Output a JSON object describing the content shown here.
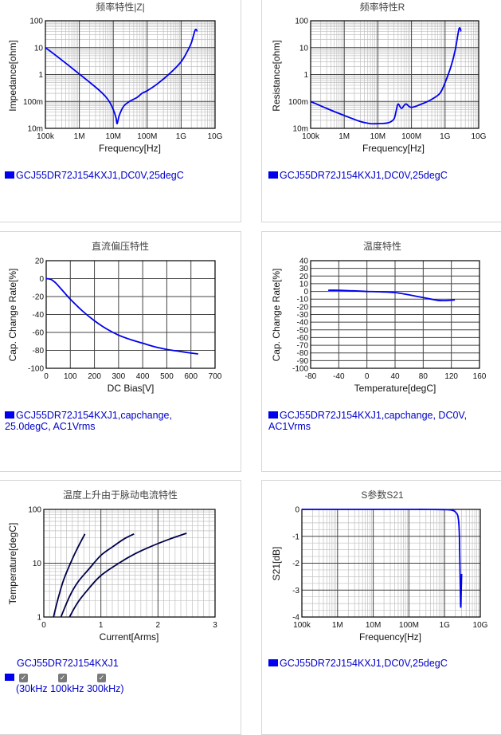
{
  "charts": [
    {
      "title": "频率特性|Z|",
      "xlabel": "Frequency[Hz]",
      "ylabel": "Impedance[ohm]",
      "xticks": [
        "100k",
        "1M",
        "10M",
        "100M",
        "1G",
        "10G"
      ],
      "yticks": [
        "100",
        "10",
        "1",
        "100m",
        "10m"
      ],
      "legend": "GCJ55DR72J154KXJ1,DC0V,25degC"
    },
    {
      "title": "频率特性R",
      "xlabel": "Frequency[Hz]",
      "ylabel": "Resistance[ohm]",
      "xticks": [
        "100k",
        "1M",
        "10M",
        "100M",
        "1G",
        "10G"
      ],
      "yticks": [
        "100",
        "10",
        "1",
        "100m",
        "10m"
      ],
      "legend": "GCJ55DR72J154KXJ1,DC0V,25degC"
    },
    {
      "title": "直流偏压特性",
      "xlabel": "DC Bias[V]",
      "ylabel": "Cap. Change Rate[%]",
      "xticks": [
        "0",
        "100",
        "200",
        "300",
        "400",
        "500",
        "600",
        "700"
      ],
      "yticks": [
        "20",
        "0",
        "-20",
        "-40",
        "-60",
        "-80",
        "-100"
      ],
      "legend_lines": [
        "GCJ55DR72J154KXJ1,capchange,",
        "25.0degC, AC1Vrms"
      ]
    },
    {
      "title": "温度特性",
      "xlabel": "Temperature[degC]",
      "ylabel": "Cap. Change Rate[%]",
      "xticks": [
        "-80",
        "-40",
        "0",
        "40",
        "80",
        "120",
        "160"
      ],
      "yticks": [
        "40",
        "30",
        "20",
        "10",
        "0",
        "-10",
        "-20",
        "-30",
        "-40",
        "-50",
        "-60",
        "-70",
        "-80",
        "-90",
        "-100"
      ],
      "legend_lines": [
        "GCJ55DR72J154KXJ1,capchange, DC0V,",
        "AC1Vrms"
      ]
    },
    {
      "title": "温度上升由于脉动电流特性",
      "xlabel": "Current[Arms]",
      "ylabel": "Temperature[degC]",
      "xticks": [
        "0",
        "1",
        "2",
        "3"
      ],
      "yticks": [
        "100",
        "10",
        "1"
      ],
      "legend": "GCJ55DR72J154KXJ1",
      "checkbox_labels": [
        "30kHz",
        "100kHz",
        "300kHz"
      ],
      "checkbox_prefix": "(",
      "checkbox_suffix": ")"
    },
    {
      "title": "S参数S21",
      "xlabel": "Frequency[Hz]",
      "ylabel": "S21[dB]",
      "xticks": [
        "100k",
        "1M",
        "10M",
        "100M",
        "1G",
        "10G"
      ],
      "yticks": [
        "0",
        "-1",
        "-2",
        "-3",
        "-4"
      ],
      "legend": "GCJ55DR72J154KXJ1,DC0V,25degC"
    }
  ],
  "colors": {
    "series": "#0000ee",
    "ripple_series": "#00004a",
    "grid": "#c0c0c0",
    "grid_major": "#444444",
    "legend_text": "#0000cc"
  },
  "chart_data": [
    {
      "type": "line",
      "title": "频率特性|Z|",
      "xlabel": "Frequency[Hz]",
      "ylabel": "Impedance[ohm]",
      "xscale": "log",
      "yscale": "log",
      "xlim": [
        100000,
        10000000000
      ],
      "ylim": [
        0.01,
        100
      ],
      "series": [
        {
          "name": "GCJ55DR72J154KXJ1,DC0V,25degC",
          "x": [
            100000,
            200000,
            500000,
            1000000,
            2000000,
            4000000,
            6000000,
            8000000,
            10000000,
            12000000,
            13000000,
            15000000,
            20000000,
            30000000,
            50000000,
            70000000,
            100000000,
            200000000,
            500000000,
            1000000000,
            1500000000,
            2000000000,
            2600000000,
            3000000000
          ],
          "y": [
            10,
            5.2,
            2.1,
            1.05,
            0.52,
            0.25,
            0.15,
            0.09,
            0.05,
            0.025,
            0.015,
            0.03,
            0.065,
            0.1,
            0.14,
            0.2,
            0.25,
            0.45,
            1.2,
            3,
            7,
            15,
            45,
            40
          ]
        }
      ]
    },
    {
      "type": "line",
      "title": "频率特性R",
      "xlabel": "Frequency[Hz]",
      "ylabel": "Resistance[ohm]",
      "xscale": "log",
      "yscale": "log",
      "xlim": [
        100000,
        10000000000
      ],
      "ylim": [
        0.01,
        100
      ],
      "series": [
        {
          "name": "GCJ55DR72J154KXJ1,DC0V,25degC",
          "x": [
            100000,
            300000,
            1000000,
            3000000,
            6000000,
            10000000,
            20000000,
            30000000,
            35000000,
            40000000,
            50000000,
            60000000,
            70000000,
            100000000,
            200000000,
            400000000,
            700000000,
            1000000000,
            1500000000,
            2000000000,
            2600000000,
            3000000000
          ],
          "y": [
            0.1,
            0.055,
            0.03,
            0.018,
            0.015,
            0.015,
            0.016,
            0.022,
            0.045,
            0.08,
            0.055,
            0.07,
            0.08,
            0.06,
            0.08,
            0.12,
            0.2,
            0.5,
            2,
            8,
            50,
            40
          ]
        }
      ]
    },
    {
      "type": "line",
      "title": "直流偏压特性",
      "xlabel": "DC Bias[V]",
      "ylabel": "Cap. Change Rate[%]",
      "xlim": [
        0,
        700
      ],
      "ylim": [
        -100,
        20
      ],
      "series": [
        {
          "name": "GCJ55DR72J154KXJ1,capchange, 25.0degC, AC1Vrms",
          "x": [
            0,
            20,
            40,
            60,
            80,
            100,
            150,
            200,
            250,
            300,
            350,
            400,
            450,
            500,
            550,
            600,
            630
          ],
          "y": [
            0,
            -1,
            -5,
            -11,
            -17,
            -23,
            -36,
            -47,
            -56,
            -63,
            -68,
            -72,
            -76,
            -79,
            -81,
            -83,
            -84
          ]
        }
      ]
    },
    {
      "type": "line",
      "title": "温度特性",
      "xlabel": "Temperature[degC]",
      "ylabel": "Cap. Change Rate[%]",
      "xlim": [
        -80,
        160
      ],
      "ylim": [
        -100,
        40
      ],
      "series": [
        {
          "name": "GCJ55DR72J154KXJ1,capchange, DC0V, AC1Vrms",
          "x": [
            -55,
            -40,
            -20,
            0,
            20,
            40,
            60,
            80,
            100,
            110,
            125
          ],
          "y": [
            1.5,
            1.5,
            0.8,
            0,
            -0.5,
            -1.5,
            -4.5,
            -8,
            -11.5,
            -12,
            -11
          ]
        }
      ]
    },
    {
      "type": "line",
      "title": "温度上升由于脉动电流特性",
      "xlabel": "Current[Arms]",
      "ylabel": "Temperature[degC]",
      "yscale": "log",
      "xlim": [
        0,
        3
      ],
      "ylim": [
        1,
        100
      ],
      "series": [
        {
          "name": "30kHz",
          "x": [
            0.17,
            0.25,
            0.35,
            0.5,
            0.6,
            0.72
          ],
          "y": [
            1,
            2.2,
            5,
            12,
            20,
            35
          ]
        },
        {
          "name": "100kHz",
          "x": [
            0.3,
            0.45,
            0.6,
            0.8,
            1.0,
            1.2,
            1.4,
            1.58
          ],
          "y": [
            1,
            2.4,
            4.5,
            8,
            14,
            20,
            28,
            35
          ]
        },
        {
          "name": "300kHz",
          "x": [
            0.45,
            0.6,
            0.8,
            1.0,
            1.3,
            1.6,
            1.9,
            2.2,
            2.5
          ],
          "y": [
            1,
            1.9,
            3.5,
            5.9,
            9.8,
            15,
            21,
            28,
            36
          ]
        }
      ]
    },
    {
      "type": "line",
      "title": "S参数S21",
      "xlabel": "Frequency[Hz]",
      "ylabel": "S21[dB]",
      "xscale": "log",
      "xlim": [
        100000,
        10000000000
      ],
      "ylim": [
        -4,
        0
      ],
      "series": [
        {
          "name": "GCJ55DR72J154KXJ1,DC0V,25degC",
          "x": [
            100000,
            1000000,
            10000000,
            100000000,
            300000000,
            1000000000,
            1500000000,
            1800000000,
            2100000000,
            2400000000,
            2600000000,
            2800000000,
            2900000000,
            3000000000
          ],
          "y": [
            0,
            0,
            0,
            0,
            0,
            -0.01,
            -0.02,
            -0.05,
            -0.12,
            -0.3,
            -1,
            -3.5,
            -3.2,
            -2.4
          ]
        }
      ]
    }
  ]
}
